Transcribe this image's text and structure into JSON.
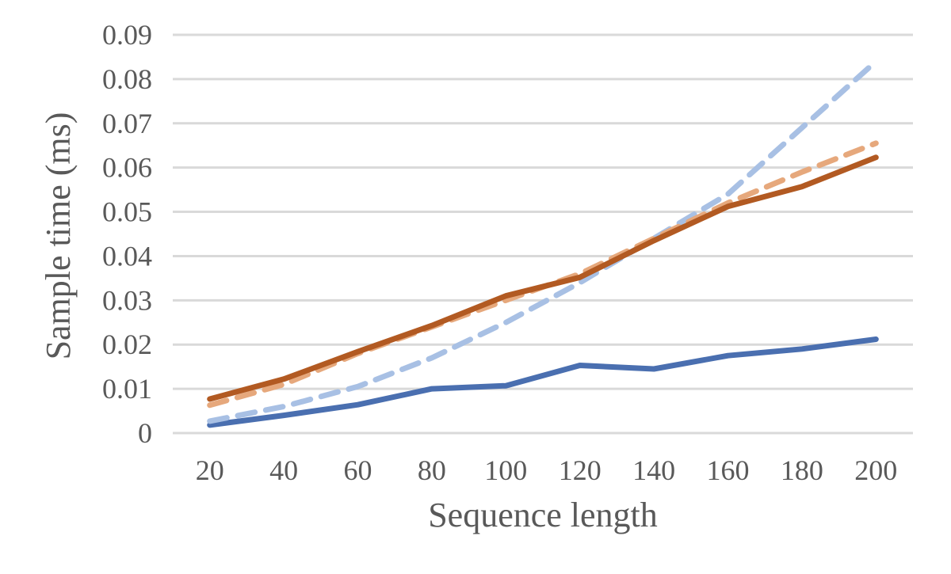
{
  "chart_data": {
    "type": "line",
    "title": "",
    "xlabel": "Sequence length",
    "ylabel": "Sample time (ms)",
    "categories": [
      "20",
      "40",
      "60",
      "80",
      "100",
      "120",
      "140",
      "160",
      "180",
      "200"
    ],
    "ylim": [
      0,
      0.09
    ],
    "yticks": [
      "0",
      "0.01",
      "0.02",
      "0.03",
      "0.04",
      "0.05",
      "0.06",
      "0.07",
      "0.08",
      "0.09"
    ],
    "grid": true,
    "legend": "none",
    "series": [
      {
        "color": "#4a6fb0",
        "dash": "solid",
        "values": [
          0.0018,
          0.004,
          0.0064,
          0.01,
          0.0107,
          0.0153,
          0.0145,
          0.0175,
          0.019,
          0.0212
        ]
      },
      {
        "color": "#a8c0e4",
        "dash": "dashed",
        "values": [
          0.0027,
          0.006,
          0.0105,
          0.017,
          0.025,
          0.034,
          0.044,
          0.054,
          0.069,
          0.084
        ]
      },
      {
        "color": "#e6a87c",
        "dash": "dashed",
        "values": [
          0.0063,
          0.011,
          0.018,
          0.024,
          0.03,
          0.036,
          0.044,
          0.052,
          0.059,
          0.0655
        ]
      },
      {
        "color": "#b25a22",
        "dash": "solid",
        "values": [
          0.0077,
          0.0122,
          0.0184,
          0.0243,
          0.031,
          0.0352,
          0.0435,
          0.0512,
          0.0557,
          0.0623
        ]
      }
    ]
  }
}
